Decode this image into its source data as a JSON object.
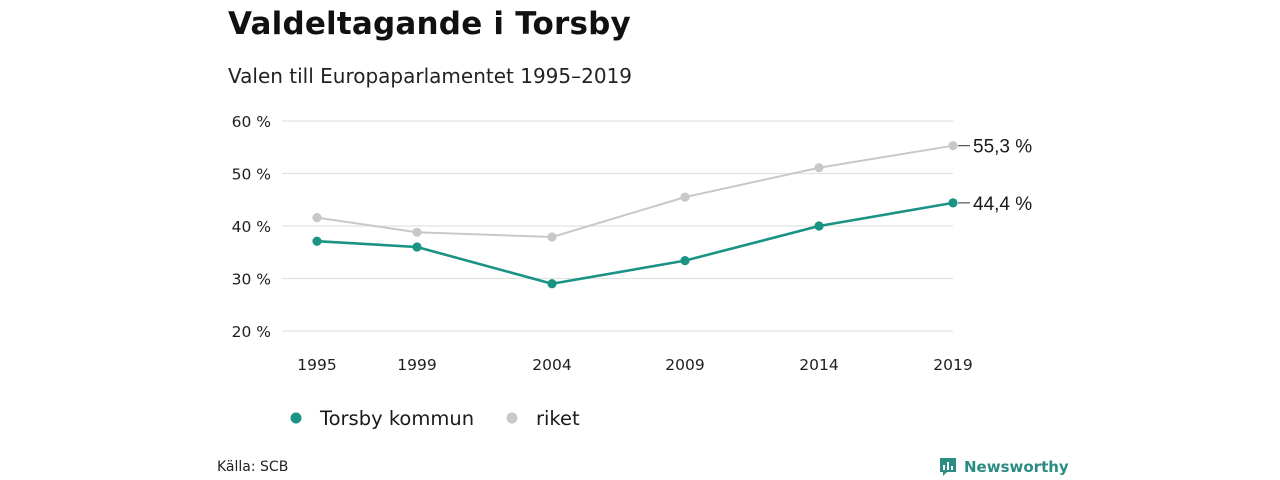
{
  "header": {
    "title": "Valdeltagande i Torsby",
    "subtitle": "Valen till Europaparlamentet 1995–2019"
  },
  "footer": {
    "source": "Källa: SCB",
    "brand": "Newsworthy"
  },
  "colors": {
    "torsby": "#1a9385",
    "riket": "#c8c8c8",
    "grid": "#e2e2e2",
    "brand": "#2a8c82"
  },
  "chart_data": {
    "type": "line",
    "title": "Valdeltagande i Torsby",
    "subtitle": "Valen till Europaparlamentet 1995–2019",
    "xlabel": "",
    "ylabel": "",
    "x": [
      1995,
      1999,
      2004,
      2009,
      2014,
      2019
    ],
    "x_tick_labels": [
      "1995",
      "1999",
      "2004",
      "2009",
      "2014",
      "2019"
    ],
    "ylim": [
      20,
      60
    ],
    "y_ticks": [
      20,
      30,
      40,
      50,
      60
    ],
    "y_tick_labels": [
      "20 %",
      "30 %",
      "40 %",
      "50 %",
      "60 %"
    ],
    "grid": true,
    "legend_position": "bottom-left",
    "series": [
      {
        "name": "Torsby kommun",
        "color": "#1a9385",
        "values": [
          37.1,
          36.0,
          29.0,
          33.4,
          40.0,
          44.4
        ],
        "end_label": "44,4 %"
      },
      {
        "name": "riket",
        "color": "#c8c8c8",
        "values": [
          41.6,
          38.8,
          37.9,
          45.5,
          51.1,
          55.3
        ],
        "end_label": "55,3 %"
      }
    ]
  }
}
